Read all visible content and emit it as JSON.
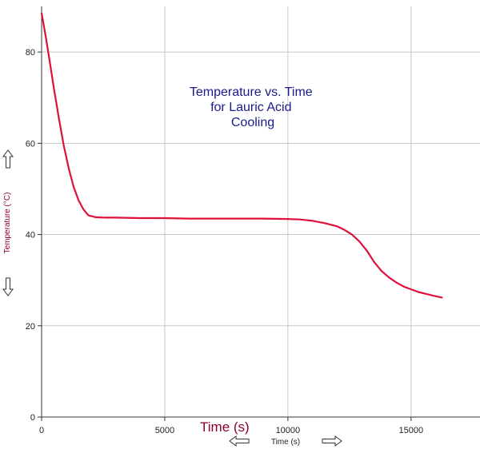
{
  "chart_data": {
    "type": "line",
    "title_lines": [
      "Temperature vs. Time",
      "for Lauric Acid",
      "Cooling"
    ],
    "xlabel_large": "Time (s)",
    "xlabel_small": "Time (s)",
    "ylabel": "Temperature (°C)",
    "xlim": [
      0,
      17800
    ],
    "ylim": [
      0,
      90
    ],
    "xticks": [
      0,
      5000,
      10000,
      15000
    ],
    "yticks": [
      0,
      20,
      40,
      60,
      80
    ],
    "xtick_labels": [
      "0",
      "5000",
      "10000",
      "15000"
    ],
    "ytick_labels": [
      "0",
      "20",
      "40",
      "60",
      "80"
    ],
    "grid": true,
    "colors": {
      "line": "#e0103a",
      "title": "#1a1a8c",
      "axis_label": "#8b0030",
      "grid": "#c8c8c8"
    },
    "series": [
      {
        "x": [
          0,
          150,
          300,
          500,
          700,
          900,
          1100,
          1300,
          1500,
          1700,
          1900,
          2200,
          2600,
          3000,
          4000,
          5000,
          6000,
          7000,
          8000,
          9000,
          10000,
          10500,
          11000,
          11500,
          12000,
          12300,
          12600,
          12900,
          13200,
          13500,
          13800,
          14100,
          14400,
          14700,
          15000,
          15300,
          15600,
          15900,
          16250
        ],
        "y": [
          88.5,
          84,
          79,
          72,
          65.5,
          59.5,
          54.5,
          50.5,
          47.5,
          45.5,
          44.2,
          43.8,
          43.7,
          43.7,
          43.6,
          43.6,
          43.5,
          43.5,
          43.5,
          43.5,
          43.4,
          43.3,
          43.0,
          42.5,
          41.8,
          41.0,
          40.0,
          38.5,
          36.5,
          34.0,
          32.0,
          30.6,
          29.5,
          28.6,
          28.0,
          27.4,
          27.0,
          26.6,
          26.2
        ]
      }
    ]
  }
}
